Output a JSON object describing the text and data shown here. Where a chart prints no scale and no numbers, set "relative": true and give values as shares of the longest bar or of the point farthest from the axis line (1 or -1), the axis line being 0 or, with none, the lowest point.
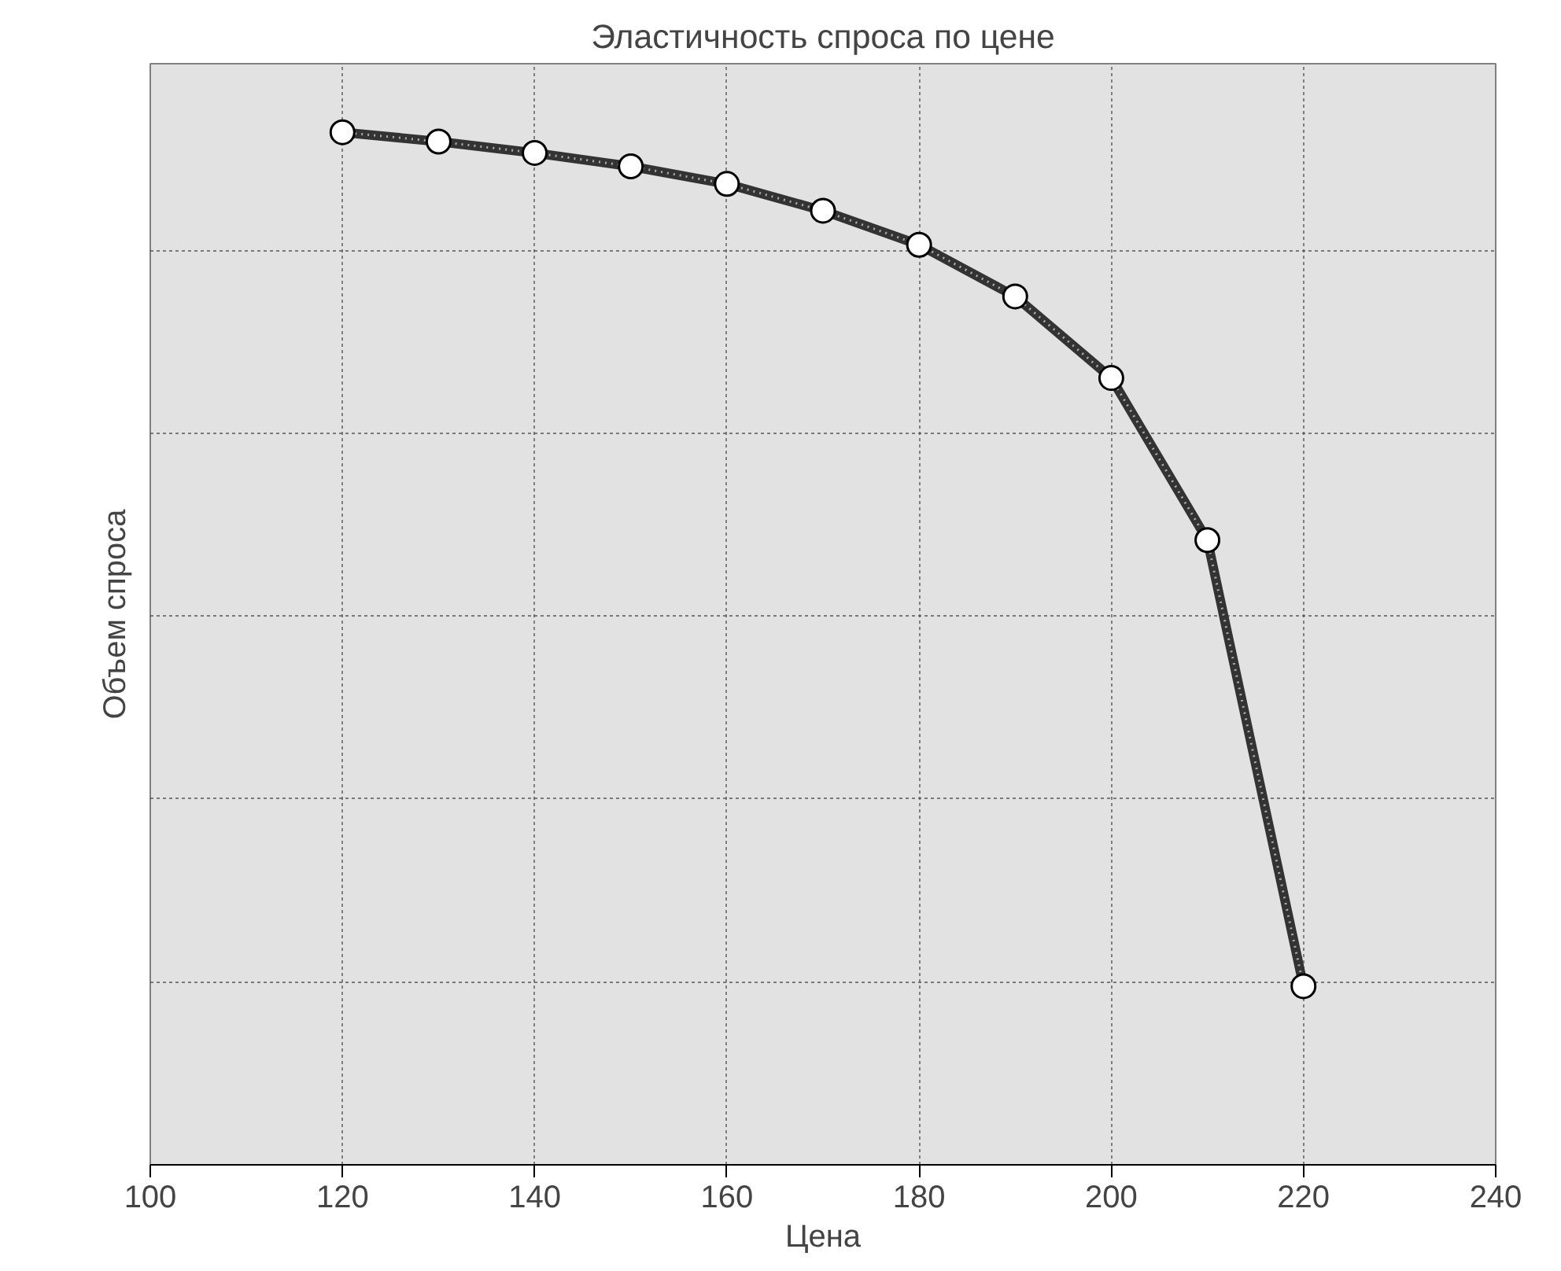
{
  "chart_data": {
    "type": "line",
    "title": "Эластичность спроса по цене",
    "xlabel": "Цена",
    "ylabel": "Объем спроса",
    "relative": true,
    "x": [
      120,
      130,
      140,
      150,
      160,
      170,
      180,
      190,
      200,
      210,
      220
    ],
    "series": [
      {
        "color": "#333333",
        "values": [
          1,
          0.991,
          0.98,
          0.967,
          0.95,
          0.924,
          0.891,
          0.841,
          0.762,
          0.605,
          0.173
        ]
      }
    ],
    "xlim": [
      100,
      240
    ],
    "xticks": [
      100,
      120,
      140,
      160,
      180,
      200,
      220,
      240
    ],
    "grid": true,
    "marker": "circle",
    "line_style": "solid",
    "tick_labels": "x"
  }
}
